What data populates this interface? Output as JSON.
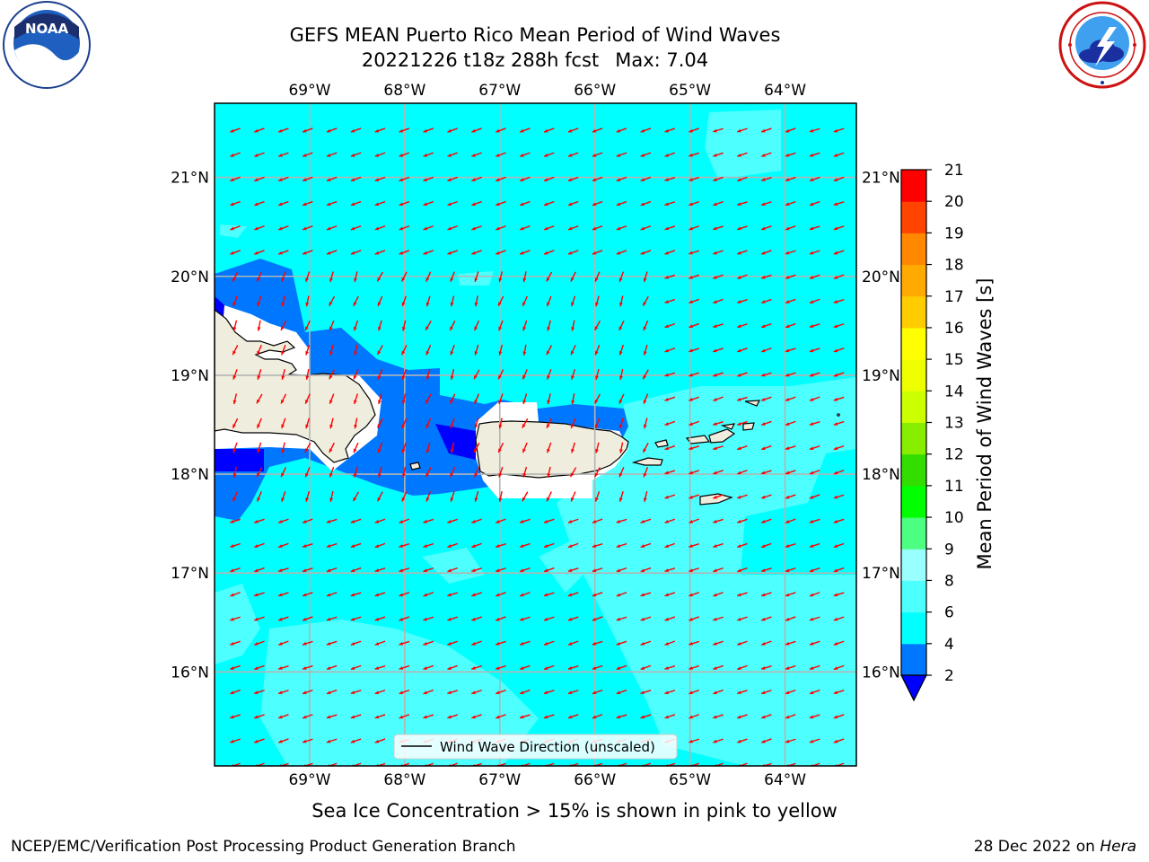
{
  "title": {
    "line1": "GEFS MEAN Puerto Rico Mean Period of Wind Waves",
    "cycle": "20221226 t18z 288h fcst",
    "max": "Max: 7.04"
  },
  "subtitle": "Sea Ice Concentration > 15% is shown in pink to yellow",
  "footer": {
    "left": "NCEP/EMC/Verification Post Processing Product Generation Branch",
    "date": "28 Dec 2022 on",
    "host": "Hera"
  },
  "logos": {
    "left": "noaa-logo",
    "left_text": "NOAA",
    "right": "national-weather-service-logo"
  },
  "map": {
    "lon_ticks": [
      "69°W",
      "68°W",
      "67°W",
      "66°W",
      "65°W",
      "64°W"
    ],
    "lon_values": [
      -69,
      -68,
      -67,
      -66,
      -65,
      -64
    ],
    "lat_ticks": [
      "21°N",
      "20°N",
      "19°N",
      "18°N",
      "17°N",
      "16°N"
    ],
    "lat_values": [
      21,
      20,
      19,
      18,
      17,
      16
    ],
    "extent": {
      "lon_min": -70,
      "lon_max": -63.25,
      "lat_min": 15.05,
      "lat_max": 21.75
    },
    "ocean_color": "#00ffff",
    "land_color": "#efedde",
    "arrow_color": "#ff0000",
    "grid": true,
    "legend": {
      "label": "Wind Wave Direction (unscaled)",
      "placement": "bottom-center"
    }
  },
  "colorbar": {
    "label": "Mean Period of Wind Waves [s]",
    "ticks": [
      "2",
      "4",
      "6",
      "8",
      "9",
      "10",
      "11",
      "12",
      "13",
      "14",
      "15",
      "16",
      "17",
      "18",
      "19",
      "20",
      "21"
    ],
    "levels": [
      2,
      4,
      6,
      8,
      9,
      10,
      11,
      12,
      13,
      14,
      15,
      16,
      17,
      18,
      19,
      20,
      21
    ],
    "colors": [
      "#0077ff",
      "#00ffff",
      "#4dffff",
      "#99ffff",
      "#4dff80",
      "#00ff00",
      "#33dd00",
      "#88ee00",
      "#ccff00",
      "#eeff00",
      "#ffff00",
      "#ffcc00",
      "#ffaa00",
      "#ff8800",
      "#ff4400",
      "#ff0000"
    ],
    "extend_color": "#0000ff"
  }
}
